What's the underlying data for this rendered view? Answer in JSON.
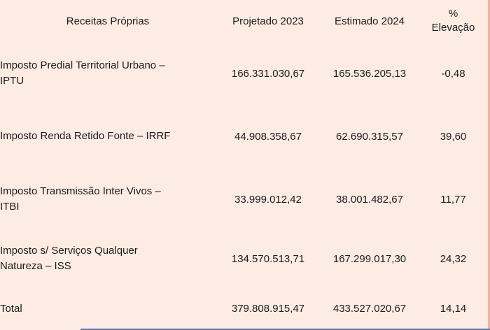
{
  "table": {
    "title_context": "Receitas Próprias",
    "headers": {
      "name": "Receitas Próprias",
      "projetado": "Projetado 2023",
      "estimado": "Estimado 2024",
      "pct": "%\nElevação"
    },
    "rows": [
      {
        "name": "Imposto Predial Territorial Urbano –\nIPTU",
        "projetado": "166.331.030,67",
        "estimado": "165.536.205,13",
        "pct": "-0,48"
      },
      {
        "name": "Imposto Renda Retido Fonte – IRRF",
        "projetado": "44.908.358,67",
        "estimado": "62.690.315,57",
        "pct": "39,60"
      },
      {
        "name": "Imposto Transmissão Inter Vivos –\nITBI",
        "projetado": "33.999.012,42",
        "estimado": "38.001.482,67",
        "pct": "11,77"
      },
      {
        "name": "Imposto s/ Serviços Qualquer\nNatureza – ISS",
        "projetado": "134.570.513,71",
        "estimado": "167.299.017,30",
        "pct": "24,32"
      }
    ],
    "total": {
      "label": "Total",
      "projetado": "379.808.915,47",
      "estimado": "433.527.020,67",
      "pct": "14,14"
    }
  },
  "colors": {
    "page_background": "#fdece3",
    "text": "#1c1c1c",
    "right_border": "#f2af9f",
    "bottom_rule_blue": "#5b7ab5"
  }
}
